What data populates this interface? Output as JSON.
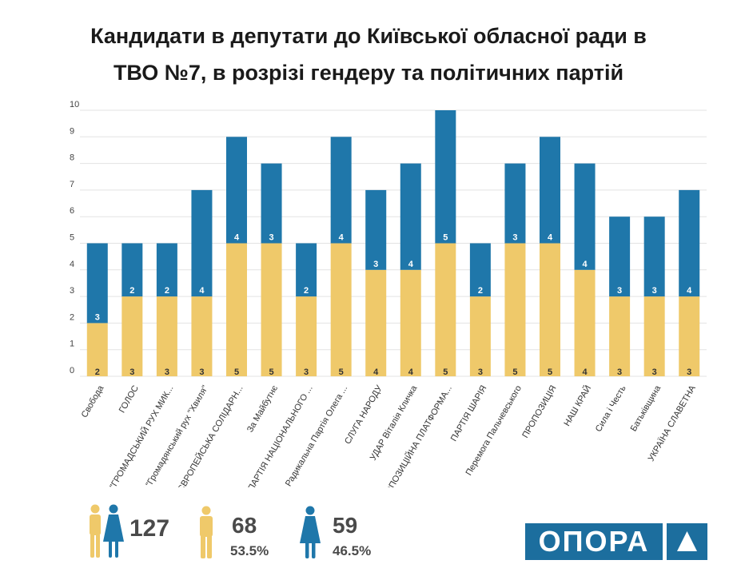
{
  "title": {
    "line1": "Кандидати в депутати до Київської обласної ради в",
    "line2": "ТВО №7, в розрізі гендеру та політичних партій"
  },
  "colors": {
    "men": "#1f77aa",
    "women": "#efc96a",
    "grid": "#e3e3e3",
    "logo": "#1c6e9e"
  },
  "chart_data": {
    "type": "bar",
    "stacked": true,
    "title": "Кандидати в депутати до Київської обласної ради в ТВО №7, в розрізі гендеру та політичних партій",
    "xlabel": "",
    "ylabel": "",
    "ylim": [
      0,
      10
    ],
    "yticks": [
      0,
      1,
      2,
      3,
      4,
      5,
      6,
      7,
      8,
      9,
      10
    ],
    "grid": true,
    "categories": [
      "Свобода",
      "ГОЛОС",
      "\"ГРОМАДСЬКИЙ РУХ МИК...",
      "\"Громадянський рух \"Хвиля\"",
      "ЄВРОПЕЙСЬКА СОЛІДАРН...",
      "За Майбутнє",
      "ПАРТІЯ НАЦІОНАЛЬНОГО ...",
      "Радикальна Партія Олега ...",
      "СЛУГА НАРОДУ",
      "УДАР Віталія Кличка",
      "ОПОЗИЦІЙНА ПЛАТФОРМА...",
      "ПАРТІЯ ШАРІЯ",
      "Перемога Пальчевського",
      "ПРОПОЗИЦІЯ",
      "НАШ КРАЙ",
      "Сила і Честь",
      "Батьківщина",
      "УКРАЇНА СЛАВЕТНА"
    ],
    "series": [
      {
        "name": "women",
        "values": [
          2,
          3,
          3,
          3,
          5,
          5,
          3,
          5,
          4,
          4,
          5,
          3,
          5,
          5,
          4,
          3,
          3,
          3
        ]
      },
      {
        "name": "men",
        "values": [
          3,
          2,
          2,
          4,
          4,
          3,
          2,
          4,
          3,
          4,
          5,
          2,
          3,
          4,
          4,
          3,
          3,
          4
        ]
      }
    ]
  },
  "summary": {
    "total": "127",
    "women_count": "68",
    "women_pct": "53.5%",
    "men_count": "59",
    "men_pct": "46.5%"
  },
  "logo": {
    "text": "ОПОРА"
  }
}
